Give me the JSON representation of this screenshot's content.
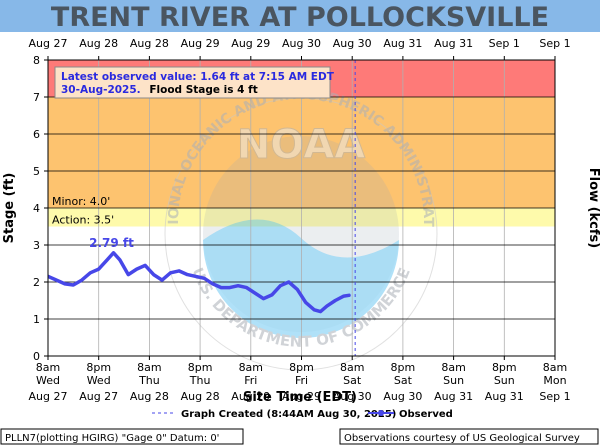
{
  "colors": {
    "header_bg": "#87b8e8",
    "title_text": "#4a5560",
    "minor_band": "#fdc36f",
    "moderate_band": "#fe7a78",
    "action_band": "#fefaab",
    "observed": "#4747e8",
    "grid": "#b0b0b0",
    "forecast_line": "#4747e8"
  },
  "chart_data": {
    "type": "line",
    "title": "TRENT RIVER AT POLLOCKSVILLE",
    "xlabel": "Site Time (EDT)",
    "ylabel": "Stage (ft)",
    "y2label": "Flow (kcfs)",
    "ylim": [
      0,
      8
    ],
    "yticks": [
      0,
      1,
      2,
      3,
      4,
      5,
      6,
      7,
      8
    ],
    "x_hours_range": [
      0,
      120
    ],
    "x_ticks_bottom": [
      {
        "t1": "8am",
        "t2": "Wed",
        "t3": "Aug 27"
      },
      {
        "t1": "8pm",
        "t2": "Wed",
        "t3": "Aug 27"
      },
      {
        "t1": "8am",
        "t2": "Thu",
        "t3": "Aug 28"
      },
      {
        "t1": "8pm",
        "t2": "Thu",
        "t3": "Aug 28"
      },
      {
        "t1": "8am",
        "t2": "Fri",
        "t3": "Aug 29"
      },
      {
        "t1": "8pm",
        "t2": "Fri",
        "t3": "Aug 29"
      },
      {
        "t1": "8am",
        "t2": "Sat",
        "t3": "Aug 30"
      },
      {
        "t1": "8pm",
        "t2": "Sat",
        "t3": "Aug 30"
      },
      {
        "t1": "8am",
        "t2": "Sun",
        "t3": "Aug 31"
      },
      {
        "t1": "8pm",
        "t2": "Sun",
        "t3": "Aug 31"
      },
      {
        "t1": "8am",
        "t2": "Mon",
        "t3": "Sep 1"
      }
    ],
    "x_ticks_top": [
      "Aug 27",
      "Aug 28",
      "Aug 28",
      "Aug 29",
      "Aug 29",
      "Aug 30",
      "Aug 30",
      "Aug 31",
      "Aug 31",
      "Sep 1",
      "Sep 1"
    ],
    "flood_categories": [
      {
        "name": "Action",
        "label": "Action: 3.5'",
        "from": 3.5,
        "to": 4
      },
      {
        "name": "Minor",
        "label": "Minor: 4.0'",
        "from": 4,
        "to": 7
      },
      {
        "name": "Moderate",
        "label": "",
        "from": 7,
        "to": 8
      }
    ],
    "graph_created_hours": 72.7,
    "peak_label": "2.79 ft",
    "peak_hours": 15.5,
    "peak_value": 2.79,
    "series": [
      {
        "name": "Observed",
        "x_hours": [
          0,
          2,
          4,
          6,
          8,
          10,
          12,
          14,
          15.5,
          17,
          19,
          21,
          23,
          25,
          27,
          29,
          31,
          33,
          35,
          37,
          39,
          41,
          43,
          45,
          47,
          49,
          51,
          53,
          55,
          57,
          59,
          61,
          63,
          64.5,
          66,
          68,
          70,
          71.25
        ],
        "values": [
          2.15,
          2.05,
          1.95,
          1.92,
          2.05,
          2.25,
          2.35,
          2.6,
          2.79,
          2.6,
          2.2,
          2.35,
          2.45,
          2.2,
          2.05,
          2.25,
          2.3,
          2.2,
          2.15,
          2.1,
          1.95,
          1.85,
          1.85,
          1.9,
          1.85,
          1.7,
          1.55,
          1.65,
          1.9,
          2.0,
          1.8,
          1.45,
          1.25,
          1.2,
          1.35,
          1.5,
          1.62,
          1.64
        ]
      }
    ]
  },
  "latest_box": {
    "line1": "Latest observed value: 1.64 ft at 7:15 AM EDT",
    "line2a": "30-Aug-2025.",
    "line2b": "Flood Stage is 4 ft"
  },
  "legend": {
    "created": "Graph Created (8:44AM Aug 30, 2025)",
    "observed": "Observed"
  },
  "footer": {
    "left": "PLLN7(plotting HGIRG) \"Gage 0\" Datum: 0'",
    "right": "Observations courtesy of US Geological Survey"
  },
  "watermark": {
    "top_text": "NATIONAL OCEANIC AND ATMOSPHERIC ADMINISTRATION",
    "bottom_text": "U.S. DEPARTMENT OF COMMERCE",
    "center": "NOAA"
  }
}
